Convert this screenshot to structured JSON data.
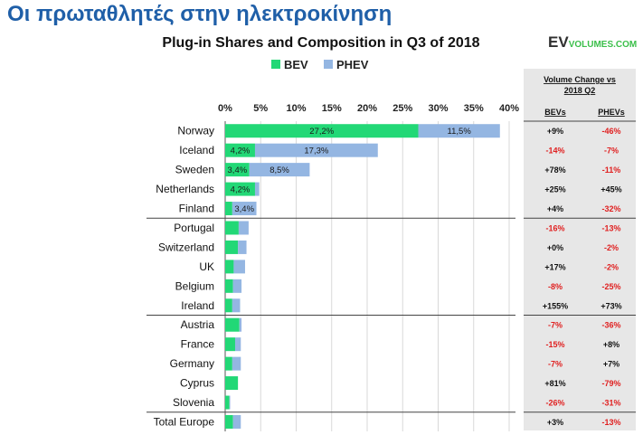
{
  "slide_title": "Οι πρωταθλητές στην ηλεκτροκίνηση",
  "logo": {
    "ev": "EV",
    "volumes": "VOLUMES.COM"
  },
  "colors": {
    "bev": "#22d876",
    "phev": "#94b6e2",
    "title": "#1f5fa8",
    "negative": "#e02020",
    "positive": "#111111",
    "table_bg": "#e7e7e7"
  },
  "chart_data": {
    "type": "bar",
    "orientation": "horizontal",
    "stacked": true,
    "title": "Plug-in Shares and Composition in Q3 of 2018",
    "legend": [
      "BEV",
      "PHEV"
    ],
    "legend_position": "top",
    "xlim": [
      0,
      40
    ],
    "x_ticks": [
      "0%",
      "5%",
      "10%",
      "15%",
      "20%",
      "25%",
      "30%",
      "35%",
      "40%"
    ],
    "categories": [
      "Norway",
      "Iceland",
      "Sweden",
      "Netherlands",
      "Finland",
      "Portugal",
      "Switzerland",
      "UK",
      "Belgium",
      "Ireland",
      "Austria",
      "France",
      "Germany",
      "Cyprus",
      "Slovenia",
      "Total Europe"
    ],
    "series": [
      {
        "name": "BEV",
        "values": [
          27.2,
          4.2,
          3.4,
          4.2,
          1.0,
          1.9,
          1.8,
          1.2,
          1.1,
          1.0,
          2.0,
          1.4,
          1.0,
          1.8,
          0.6,
          1.1
        ],
        "labels": [
          "27,2%",
          "4,2%",
          "3,4%",
          "4,2%",
          "",
          "",
          "",
          "",
          "",
          "",
          "",
          "",
          "",
          "",
          "",
          ""
        ]
      },
      {
        "name": "PHEV",
        "values": [
          11.5,
          17.3,
          8.5,
          0.6,
          3.4,
          1.4,
          1.2,
          1.6,
          1.2,
          1.1,
          0.3,
          0.8,
          1.2,
          0.0,
          0.1,
          1.1
        ],
        "labels": [
          "11,5%",
          "17,3%",
          "8,5%",
          "",
          "3,4%",
          "",
          "",
          "",
          "",
          "",
          "",
          "",
          "",
          "",
          "",
          ""
        ]
      }
    ],
    "table": {
      "header": "Volume Change vs 2018 Q2",
      "columns": [
        "BEVs",
        "PHEVs"
      ],
      "rows": [
        [
          "+9%",
          "-46%"
        ],
        [
          "-14%",
          "-7%"
        ],
        [
          "+78%",
          "-11%"
        ],
        [
          "+25%",
          "+45%"
        ],
        [
          "+4%",
          "-32%"
        ],
        [
          "-16%",
          "-13%"
        ],
        [
          "+0%",
          "-2%"
        ],
        [
          "+17%",
          "-2%"
        ],
        [
          "-8%",
          "-25%"
        ],
        [
          "+155%",
          "+73%"
        ],
        [
          "-7%",
          "-36%"
        ],
        [
          "-15%",
          "+8%"
        ],
        [
          "-7%",
          "+7%"
        ],
        [
          "+81%",
          "-79%"
        ],
        [
          "-26%",
          "-31%"
        ],
        [
          "+3%",
          "-13%"
        ]
      ]
    }
  }
}
